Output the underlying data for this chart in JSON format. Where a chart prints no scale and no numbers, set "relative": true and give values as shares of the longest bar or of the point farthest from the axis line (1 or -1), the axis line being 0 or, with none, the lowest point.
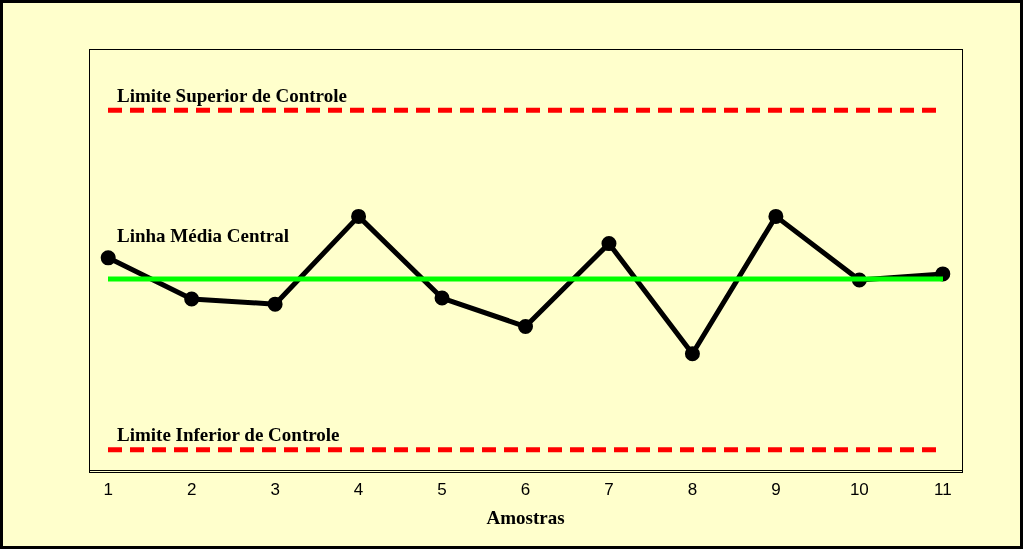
{
  "chart_data": {
    "type": "line",
    "relative": true,
    "xlabel": "Amostras",
    "x": [
      1,
      2,
      3,
      4,
      5,
      6,
      7,
      8,
      9,
      10,
      11
    ],
    "series": [
      {
        "color": "#000000",
        "values": [
          0.837,
          0.675,
          0.655,
          1,
          0.679,
          0.567,
          0.893,
          0.46,
          1,
          0.75,
          0.774
        ]
      }
    ],
    "xlim": [
      0.77,
      11.23
    ],
    "xticks": [
      1,
      2,
      3,
      4,
      5,
      6,
      7,
      8,
      9,
      10,
      11
    ],
    "ref_lines": [
      {
        "axis": "y",
        "value": 1.417,
        "label": "Limite Superior de Controle",
        "color": "#ff0000",
        "line_style": "dashed"
      },
      {
        "axis": "y",
        "value": 0.754,
        "label": "Linha Média Central",
        "color": "#00ff00",
        "line_style": "solid"
      },
      {
        "axis": "y",
        "value": 0.083,
        "label": "Limite Inferior de Controle",
        "color": "#ff0000",
        "line_style": "dashed"
      }
    ],
    "marker": "circle",
    "line_style": "solid",
    "grid": false,
    "legend": false
  }
}
